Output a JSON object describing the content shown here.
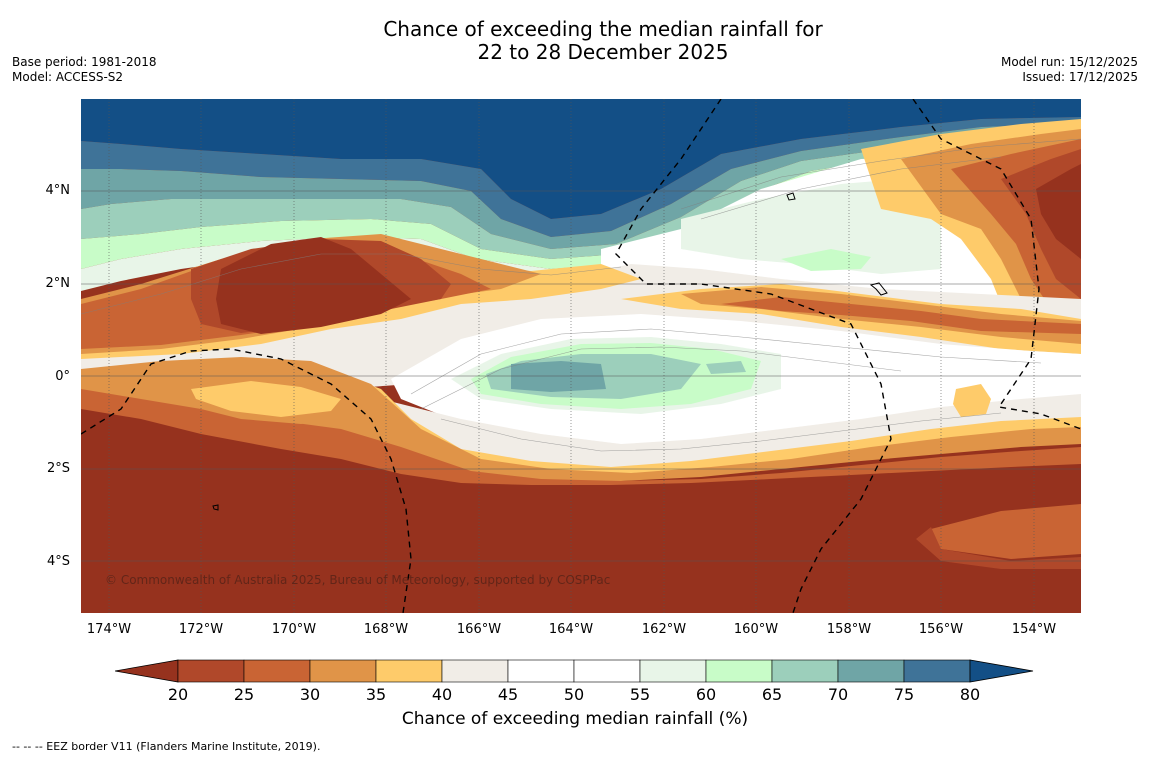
{
  "header": {
    "title_line1": "Chance of exceeding the median rainfall for",
    "title_line2": "22 to 28 December 2025",
    "base_period": "Base period: 1981-2018",
    "model": "Model: ACCESS-S2",
    "model_run": "Model run: 15/12/2025",
    "issued": "Issued: 17/12/2025"
  },
  "map": {
    "lat_labels": [
      "4°N",
      "2°N",
      "0°",
      "2°S",
      "4°S"
    ],
    "lon_labels": [
      "174°W",
      "172°W",
      "170°W",
      "168°W",
      "166°W",
      "164°W",
      "162°W",
      "160°W",
      "158°W",
      "156°W",
      "154°W"
    ],
    "copyright": "© Commonwealth of Australia 2025, Bureau of Meteorology, supported by COSPPac"
  },
  "colorbar": {
    "ticks": [
      "20",
      "25",
      "30",
      "35",
      "40",
      "45",
      "50",
      "55",
      "60",
      "65",
      "70",
      "75",
      "80"
    ],
    "colors": [
      "#96321e",
      "#b0482a",
      "#c96434",
      "#e09448",
      "#fecb6a",
      "#f1ede7",
      "#ffffff",
      "#ffffff",
      "#e8f5e8",
      "#c8fcc8",
      "#9ccfbb",
      "#6fa5a6",
      "#3f7398",
      "#134f86"
    ],
    "label": "Chance of exceeding median rainfall (%)"
  },
  "footer": {
    "legend": "--  --  -- EEZ border V11 (Flanders Marine Institute, 2019)."
  }
}
